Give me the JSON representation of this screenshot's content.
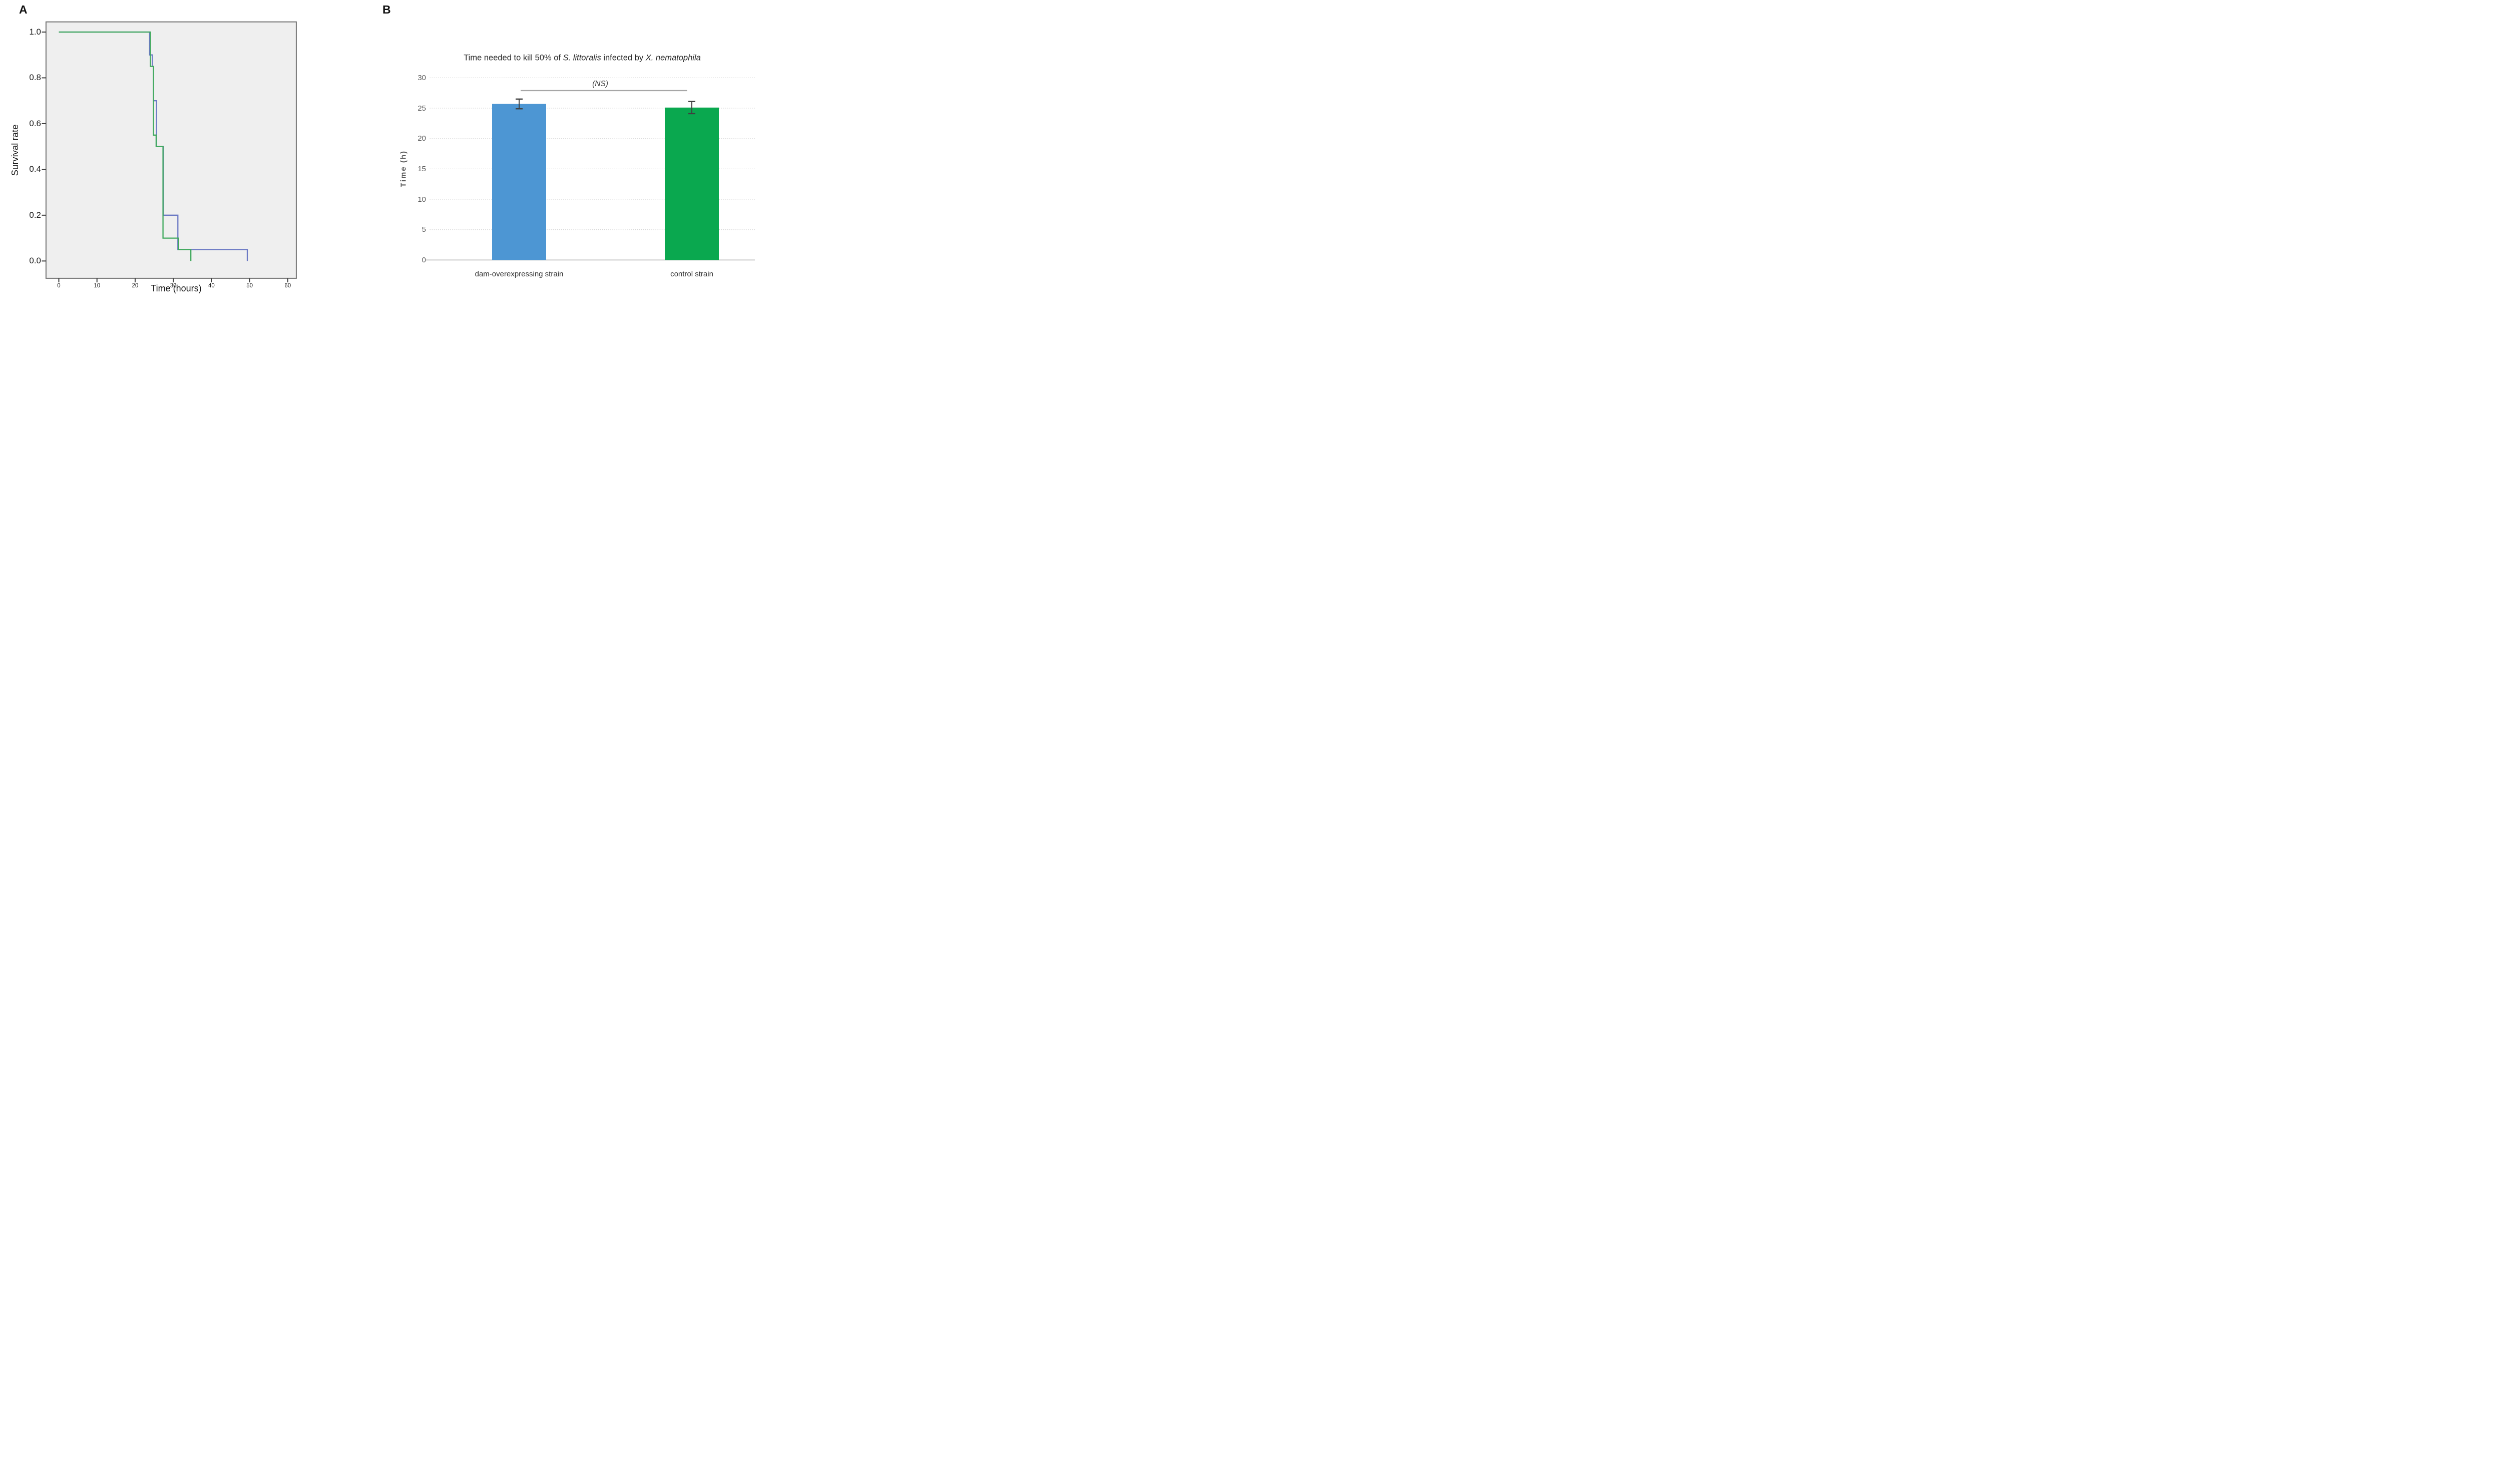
{
  "chart_data": [
    {
      "id": "panel_a",
      "panel_label": "A",
      "type": "line",
      "subtype": "kaplan-meier-step-survival",
      "title": "",
      "xlabel": "Time (hours)",
      "ylabel": "Survival rate",
      "x_ticks": [
        0,
        10,
        20,
        30,
        40,
        50,
        60
      ],
      "y_ticks": [
        "1.0",
        "0.8",
        "0.6",
        "0.4",
        "0.2",
        "0.0"
      ],
      "xlim": [
        -3.5,
        63
      ],
      "ylim": [
        -0.08,
        1.08
      ],
      "grid": false,
      "plot_bg": "#efefef",
      "frame_color": "#747474",
      "series": [
        {
          "name": "dam-overexpressing strain",
          "color": "#6b79c4",
          "steps": [
            [
              0,
              1.0
            ],
            [
              23.8,
              1.0
            ],
            [
              23.8,
              0.9
            ],
            [
              24.5,
              0.9
            ],
            [
              24.5,
              0.85
            ],
            [
              24.8,
              0.85
            ],
            [
              24.8,
              0.7
            ],
            [
              25.6,
              0.7
            ],
            [
              25.6,
              0.5
            ],
            [
              27.4,
              0.5
            ],
            [
              27.4,
              0.2
            ],
            [
              31.2,
              0.2
            ],
            [
              31.2,
              0.05
            ],
            [
              49.4,
              0.05
            ],
            [
              49.4,
              0.0
            ]
          ]
        },
        {
          "name": "control strain",
          "color": "#3fa95c",
          "steps": [
            [
              0,
              1.0
            ],
            [
              24.0,
              1.0
            ],
            [
              24.0,
              0.85
            ],
            [
              24.8,
              0.85
            ],
            [
              24.8,
              0.55
            ],
            [
              25.5,
              0.55
            ],
            [
              25.5,
              0.5
            ],
            [
              27.3,
              0.5
            ],
            [
              27.3,
              0.1
            ],
            [
              31.4,
              0.1
            ],
            [
              31.4,
              0.05
            ],
            [
              34.6,
              0.05
            ],
            [
              34.6,
              0.0
            ]
          ]
        }
      ]
    },
    {
      "id": "panel_b",
      "panel_label": "B",
      "type": "bar",
      "title_segments": [
        {
          "text": "Time needed to kill 50% of ",
          "italic": false
        },
        {
          "text": "S. littoralis",
          "italic": true
        },
        {
          "text": " infected by ",
          "italic": false
        },
        {
          "text": "X. nematophila",
          "italic": true
        }
      ],
      "title_plain": "Time needed to kill 50% of S. littoralis infected by X. nematophila",
      "xlabel": "",
      "ylabel": "Time (h)",
      "categories": [
        "dam-overexpressing strain",
        "control strain"
      ],
      "values": [
        25.7,
        25.1
      ],
      "errors": [
        0.8,
        1.0
      ],
      "bar_colors": [
        "#4d96d3",
        "#0aa84f"
      ],
      "error_bar_color": "#3f3f3f",
      "y_ticks": [
        0,
        5,
        10,
        15,
        20,
        25,
        30
      ],
      "ylim": [
        0,
        30
      ],
      "grid": true,
      "gridline_color": "#d2d2d2",
      "baseline_color": "#b3b3b3",
      "legend": "none",
      "annotation": {
        "text": "(NS)",
        "italic": true,
        "bracket_color": "#a6a6a6",
        "spans": "both bars"
      }
    }
  ]
}
